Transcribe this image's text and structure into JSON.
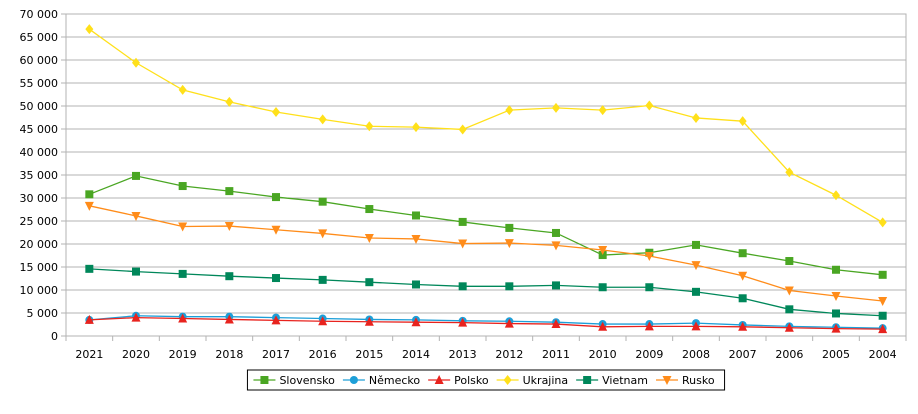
{
  "chart_data": {
    "type": "line",
    "title": "",
    "xlabel": "",
    "ylabel": "",
    "x": [
      "2021",
      "2020",
      "2019",
      "2018",
      "2017",
      "2016",
      "2015",
      "2014",
      "2013",
      "2012",
      "2011",
      "2010",
      "2009",
      "2008",
      "2007",
      "2006",
      "2005",
      "2004"
    ],
    "ylim": [
      0,
      70000
    ],
    "ytick_step": 5000,
    "ytick_labels": [
      "0",
      "5 000",
      "10 000",
      "15 000",
      "20 000",
      "25 000",
      "30 000",
      "35 000",
      "40 000",
      "45 000",
      "50 000",
      "55 000",
      "60 000",
      "65 000",
      "70 000"
    ],
    "grid": "horizontal",
    "legend_position": "bottom",
    "series": [
      {
        "name": "Slovensko",
        "color": "#4aa623",
        "marker": "square",
        "values": [
          30800,
          34800,
          32600,
          31500,
          30200,
          29200,
          27600,
          26200,
          24800,
          23500,
          22400,
          17600,
          18100,
          19800,
          18000,
          16300,
          14400,
          13300
        ]
      },
      {
        "name": "Německo",
        "color": "#1d9fd8",
        "marker": "circle",
        "values": [
          3500,
          4400,
          4200,
          4200,
          4000,
          3800,
          3600,
          3500,
          3300,
          3200,
          3000,
          2600,
          2600,
          2800,
          2400,
          2100,
          1900,
          1700
        ]
      },
      {
        "name": "Polsko",
        "color": "#e8231e",
        "marker": "triangle-up",
        "values": [
          3500,
          4000,
          3800,
          3600,
          3400,
          3200,
          3100,
          3000,
          2900,
          2700,
          2600,
          2000,
          2100,
          2100,
          2000,
          1800,
          1600,
          1500
        ]
      },
      {
        "name": "Ukrajina",
        "color": "#ffe01a",
        "marker": "diamond",
        "values": [
          66700,
          59400,
          53500,
          50900,
          48700,
          47100,
          45600,
          45400,
          44900,
          49100,
          49600,
          49100,
          50100,
          47400,
          46700,
          35600,
          30600,
          24700
        ]
      },
      {
        "name": "Vietnam",
        "color": "#00875a",
        "marker": "square",
        "values": [
          14600,
          14000,
          13500,
          13000,
          12600,
          12200,
          11700,
          11200,
          10800,
          10800,
          11000,
          10600,
          10600,
          9600,
          8200,
          5800,
          4900,
          4400
        ]
      },
      {
        "name": "Rusko",
        "color": "#ff8c1a",
        "marker": "triangle-down",
        "values": [
          28300,
          26100,
          23800,
          23900,
          23100,
          22300,
          21300,
          21100,
          20100,
          20200,
          19700,
          18700,
          17400,
          15400,
          13100,
          9900,
          8700,
          7600
        ]
      }
    ]
  }
}
